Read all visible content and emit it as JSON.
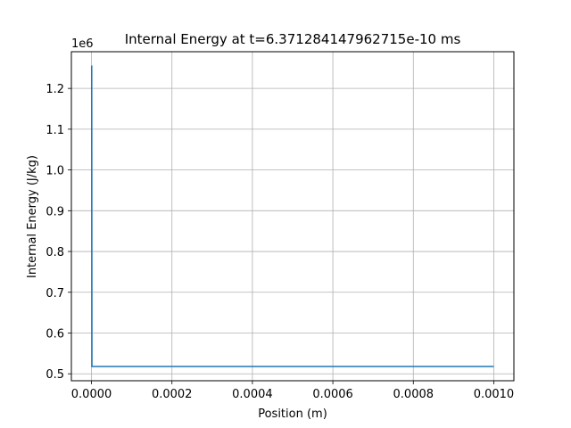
{
  "chart_data": {
    "type": "line",
    "title": "Internal Energy at t=6.371284147962715e-10 ms",
    "xlabel": "Position (m)",
    "ylabel": "Internal Energy (J/kg)",
    "y_offset_text": "1e6",
    "xlim": [
      -5e-05,
      0.00105
    ],
    "ylim": [
      0.483,
      1.29
    ],
    "x_ticks": [
      0.0,
      0.0002,
      0.0004,
      0.0006,
      0.0008,
      0.001
    ],
    "x_tick_labels": [
      "0.0000",
      "0.0002",
      "0.0004",
      "0.0006",
      "0.0008",
      "0.0010"
    ],
    "y_ticks": [
      0.5,
      0.6,
      0.7,
      0.8,
      0.9,
      1.0,
      1.1,
      1.2
    ],
    "y_tick_labels": [
      "0.5",
      "0.6",
      "0.7",
      "0.8",
      "0.9",
      "1.0",
      "1.1",
      "1.2"
    ],
    "grid": true,
    "series": [
      {
        "color": "#1f77b4",
        "x": [
          0.0,
          5e-07,
          1e-06,
          0.001
        ],
        "y": [
          1.255,
          1.255,
          0.518,
          0.518
        ]
      }
    ]
  }
}
